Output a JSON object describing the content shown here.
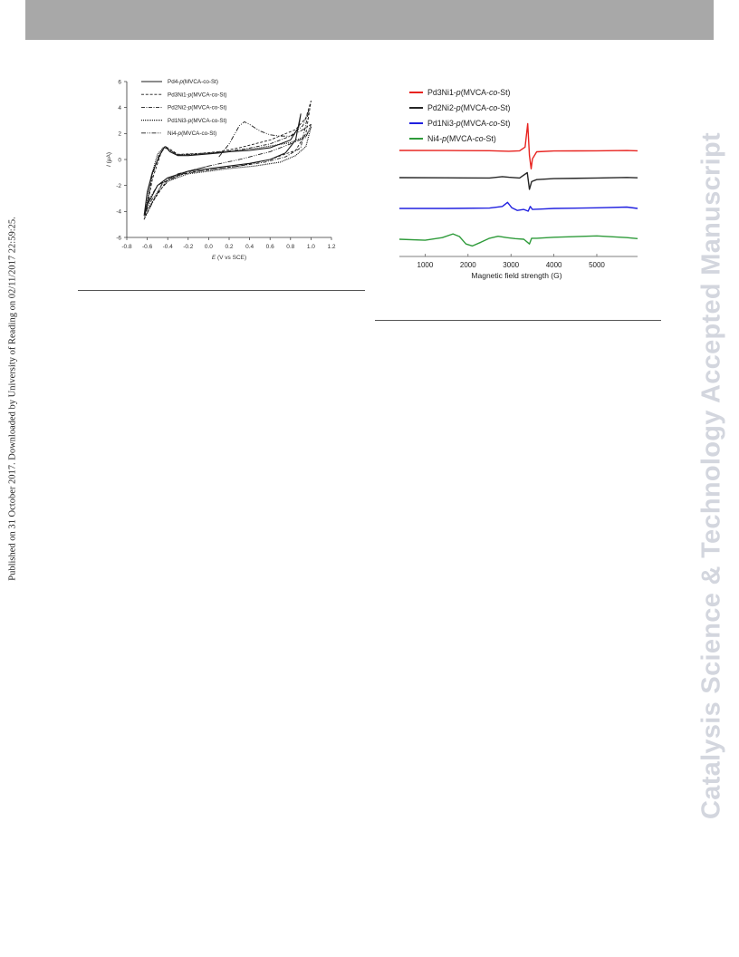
{
  "page": {
    "side_note": "Published on 31 October 2017. Downloaded by University of Reading on 02/11/2017 22:59:25.",
    "watermark": "Catalysis Science & Technology Accepted Manuscript"
  },
  "chart_data": [
    {
      "type": "line",
      "title": "",
      "xlabel": "E (V vs SCE)",
      "ylabel": "I (μA)",
      "xlim": [
        -0.8,
        1.2
      ],
      "ylim": [
        -6,
        6
      ],
      "xticks": [
        "-0.8",
        "-0.6",
        "-0.4",
        "-0.2",
        "0.0",
        "0.2",
        "0.4",
        "0.6",
        "0.8",
        "1.0",
        "1.2"
      ],
      "yticks": [
        "6",
        "4",
        "2",
        "0",
        "-2",
        "-4",
        "-6"
      ],
      "legend_position": "top-left",
      "series": [
        {
          "name": "Pd4-p(MVCA-co-St)",
          "x": [
            0.1,
            -0.05,
            -0.2,
            -0.3,
            -0.38,
            -0.42,
            -0.44,
            -0.48,
            -0.55,
            -0.6,
            -0.63,
            -0.6,
            -0.5,
            -0.4,
            -0.2,
            0.0,
            0.2,
            0.4,
            0.6,
            0.75,
            0.85,
            0.9,
            0.88,
            0.8,
            0.6,
            0.4,
            0.2,
            0.1
          ],
          "y": [
            0.5,
            0.4,
            0.3,
            0.3,
            0.6,
            1.0,
            0.9,
            0.3,
            -1.0,
            -2.5,
            -4.3,
            -3.5,
            -2.0,
            -1.4,
            -0.9,
            -0.7,
            -0.5,
            -0.3,
            0.0,
            0.5,
            1.5,
            3.5,
            2.5,
            1.5,
            0.9,
            0.7,
            0.6,
            0.5
          ]
        },
        {
          "name": "Pd3Ni1-p(MVCA-co-St)",
          "x": [
            0.1,
            -0.1,
            -0.3,
            -0.4,
            -0.43,
            -0.47,
            -0.55,
            -0.62,
            -0.55,
            -0.4,
            -0.2,
            0.0,
            0.3,
            0.6,
            0.85,
            0.95,
            1.0,
            0.95,
            0.85,
            0.6,
            0.3,
            0.1
          ],
          "y": [
            0.6,
            0.45,
            0.4,
            0.9,
            1.0,
            0.4,
            -1.5,
            -4.4,
            -3.3,
            -1.5,
            -1.0,
            -0.8,
            -0.5,
            0.0,
            0.7,
            2.0,
            4.5,
            3.2,
            2.3,
            1.5,
            0.9,
            0.6
          ]
        },
        {
          "name": "Pd2Ni2-p(MVCA-co-St)",
          "x": [
            0.1,
            -0.1,
            -0.3,
            -0.42,
            -0.48,
            -0.55,
            -0.63,
            -0.58,
            -0.45,
            -0.3,
            -0.1,
            0.1,
            0.3,
            0.55,
            0.75,
            0.9,
            0.98,
            0.92,
            0.8,
            0.6,
            0.35,
            0.1
          ],
          "y": [
            0.55,
            0.4,
            0.35,
            0.9,
            0.5,
            -1.2,
            -4.6,
            -3.8,
            -1.8,
            -1.2,
            -0.9,
            -0.7,
            -0.5,
            -0.2,
            0.2,
            0.9,
            3.8,
            2.6,
            1.8,
            1.2,
            0.8,
            0.55
          ]
        },
        {
          "name": "Pd1Ni3-p(MVCA-co-St)",
          "x": [
            0.1,
            -0.1,
            -0.3,
            -0.4,
            -0.44,
            -0.5,
            -0.56,
            -0.62,
            -0.56,
            -0.45,
            -0.2,
            0.0,
            0.2,
            0.45,
            0.7,
            0.85,
            0.95,
            1.0,
            0.95,
            0.8,
            0.5,
            0.3,
            0.1
          ],
          "y": [
            0.55,
            0.45,
            0.35,
            0.8,
            0.95,
            0.4,
            -1.3,
            -4.1,
            -3.4,
            -1.8,
            -1.1,
            -0.9,
            -0.7,
            -0.5,
            -0.2,
            0.3,
            1.0,
            2.5,
            1.8,
            1.3,
            0.9,
            0.7,
            0.55
          ]
        },
        {
          "name": "Ni4-p(MVCA-co-St)",
          "x": [
            0.1,
            0.2,
            0.3,
            0.35,
            0.4,
            0.5,
            0.6,
            0.7,
            0.8,
            0.9,
            1.0,
            0.95,
            0.8,
            0.6,
            0.3,
            0.0,
            -0.3,
            -0.5,
            -0.6,
            -0.63,
            -0.55,
            -0.4,
            -0.2,
            0.0
          ],
          "y": [
            0.2,
            1.2,
            2.6,
            2.9,
            2.7,
            2.2,
            1.9,
            1.8,
            1.8,
            2.2,
            2.7,
            1.7,
            1.2,
            0.6,
            0.0,
            -0.5,
            -1.1,
            -2.0,
            -3.3,
            -4.2,
            -3.0,
            -1.7,
            -0.9,
            -0.5
          ]
        }
      ]
    },
    {
      "type": "line",
      "title": "",
      "xlabel": "Magnetic field strength (G)",
      "ylabel": "",
      "xlim": [
        400,
        5950
      ],
      "xticks": [
        "1000",
        "2000",
        "3000",
        "4000",
        "5000"
      ],
      "legend_position": "top-left",
      "series": [
        {
          "name": "Pd3Ni1-p(MVCA-co-St)",
          "color": "#e8231f",
          "x": [
            400,
            1500,
            2500,
            2950,
            3200,
            3330,
            3390,
            3430,
            3470,
            3500,
            3600,
            4000,
            5000,
            5700,
            5950
          ],
          "y": [
            0.0,
            -0.02,
            -0.08,
            -0.25,
            -0.1,
            1.0,
            8.0,
            -1.5,
            -5.5,
            -2.5,
            -0.4,
            -0.15,
            -0.1,
            -0.02,
            -0.12
          ]
        },
        {
          "name": "Pd2Ni2-p(MVCA-co-St)",
          "color": "#262626",
          "x": [
            400,
            1500,
            2500,
            2800,
            2950,
            3200,
            3380,
            3430,
            3480,
            3600,
            4000,
            5000,
            5700,
            5950
          ],
          "y": [
            0.0,
            -0.05,
            -0.1,
            0.3,
            0.1,
            -0.1,
            1.5,
            -3.5,
            -1.2,
            -0.6,
            -0.3,
            -0.1,
            0.05,
            -0.05
          ]
        },
        {
          "name": "Pd1Ni3-p(MVCA-co-St)",
          "color": "#2020e0",
          "x": [
            400,
            1500,
            2500,
            2800,
            2920,
            3020,
            3150,
            3300,
            3400,
            3450,
            3500,
            3700,
            4000,
            5000,
            5700,
            5950
          ],
          "y": [
            0.0,
            0.0,
            0.1,
            0.6,
            1.8,
            0.2,
            -0.6,
            -0.3,
            -0.8,
            0.6,
            -0.3,
            -0.2,
            0.0,
            0.2,
            0.4,
            0.0
          ]
        },
        {
          "name": "Ni4-p(MVCA-co-St)",
          "color": "#2e9b3a",
          "x": [
            400,
            1000,
            1400,
            1650,
            1800,
            1950,
            2100,
            2300,
            2500,
            2700,
            2900,
            3100,
            3300,
            3430,
            3480,
            3600,
            4000,
            5000,
            5700,
            5950
          ],
          "y": [
            0.0,
            -0.3,
            0.5,
            1.6,
            0.8,
            -1.4,
            -2.0,
            -0.9,
            0.3,
            0.9,
            0.5,
            0.2,
            0.0,
            -1.4,
            0.3,
            0.3,
            0.6,
            1.0,
            0.5,
            0.2
          ]
        }
      ]
    }
  ]
}
